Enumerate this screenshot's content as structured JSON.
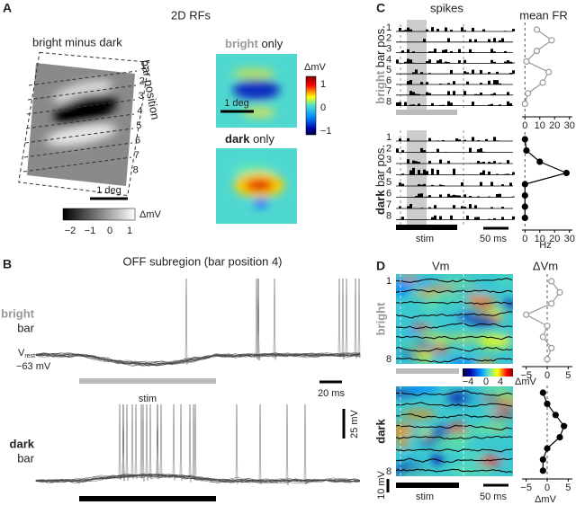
{
  "A": {
    "letter": "A",
    "title": "2D RFs",
    "diff_title": "bright minus dark",
    "bar_position": "bar position",
    "positions": [
      "1",
      "2",
      "3",
      "4",
      "5",
      "6",
      "7",
      "8"
    ],
    "scale": "1 deg",
    "gray_ticks": [
      "−2",
      "−1",
      "0",
      "1"
    ],
    "gray_unit": "ΔmV",
    "bright_word": "bright",
    "bright_only": " only",
    "bright_scale": "1 deg",
    "dark_word": "dark",
    "dark_only": " only",
    "jet_unit": "ΔmV",
    "jet_ticks": [
      "1",
      "0",
      "−1"
    ]
  },
  "B": {
    "letter": "B",
    "title": "OFF subregion (bar position 4)",
    "bright_word": "bright",
    "bright_bar": "bar",
    "v": "V",
    "v_sub": "rest",
    "v_value": "−63 mV",
    "stim": "stim",
    "time_scale": "20 ms",
    "volt_scale": "25 mV",
    "dark_word": "dark",
    "dark_bar": "bar"
  },
  "C": {
    "letter": "C",
    "title": "spikes",
    "fr_title": "mean FR",
    "bright_rows": [
      "1",
      "2",
      "3",
      "4",
      "5",
      "6",
      "7",
      "8"
    ],
    "dark_rows": [
      "1",
      "2",
      "3",
      "4",
      "5",
      "6",
      "7",
      "8"
    ],
    "bright_word": "bright",
    "bright_axis": " bar pos.",
    "dark_word": "dark",
    "dark_axis": " bar pos.",
    "stim": "stim",
    "time_scale": "50 ms",
    "unit": "Hz",
    "xlim": [
      -2,
      32
    ],
    "xticks": [
      0,
      10,
      20,
      30
    ],
    "bright_fr": [
      8,
      18,
      8,
      1,
      16,
      12,
      2,
      0
    ],
    "dark_fr": [
      0,
      1,
      10,
      28,
      0,
      0,
      0,
      0
    ]
  },
  "D": {
    "letter": "D",
    "title": "Vm",
    "dv_title": "ΔVm",
    "bright_rows": [
      "1",
      "8"
    ],
    "dark_rows": [
      "8"
    ],
    "bright_word": "bright",
    "dark_word": "dark",
    "cbar_ticks": [
      "−4",
      "0",
      "4"
    ],
    "cbar_unit": "ΔmV",
    "volt_scale": "10 mV",
    "stim": "stim",
    "time_scale": "50 ms",
    "unit": "ΔmV",
    "xlim": [
      -6,
      6
    ],
    "xticks": [
      {
        "value": -5,
        "label": "−5"
      },
      0,
      5
    ],
    "bright_dv": [
      1,
      3,
      1,
      -5,
      0,
      -1,
      1,
      0
    ],
    "dark_dv": [
      -1,
      0,
      2,
      4,
      3,
      0,
      -1,
      -1
    ]
  }
}
